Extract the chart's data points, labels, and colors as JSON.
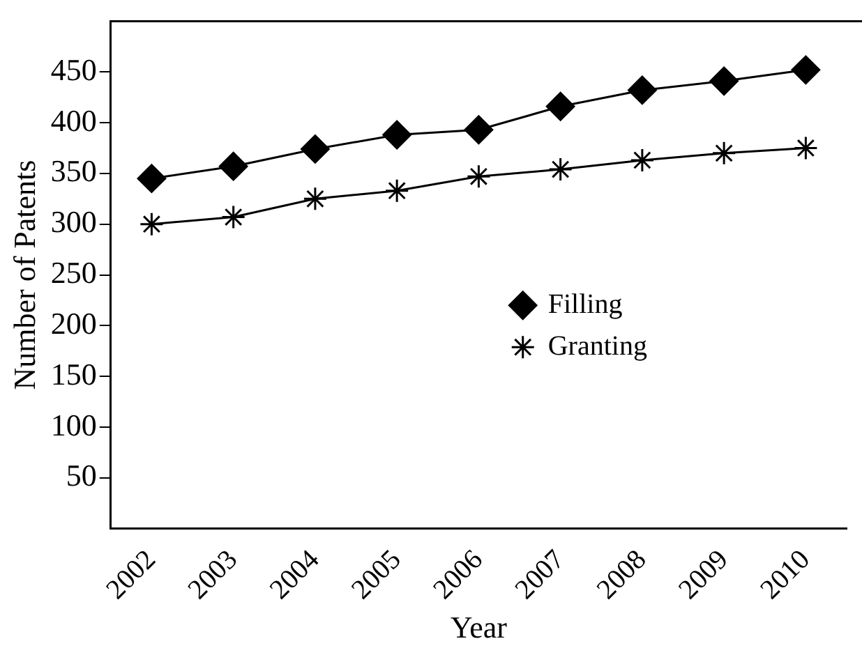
{
  "chart_data": {
    "type": "line",
    "xlabel": "Year",
    "ylabel": "Number of Patents",
    "categories": [
      "2002",
      "2003",
      "2004",
      "2005",
      "2006",
      "2007",
      "2008",
      "2009",
      "2010"
    ],
    "series": [
      {
        "name": "Filling",
        "color": "#000000",
        "marker": "diamond",
        "values": [
          345,
          357,
          374,
          388,
          393,
          416,
          432,
          441,
          452
        ]
      },
      {
        "name": "Granting",
        "color": "#000000",
        "marker": "cross",
        "values": [
          300,
          307,
          325,
          333,
          347,
          354,
          363,
          370,
          375
        ]
      }
    ],
    "ylim": [
      0,
      500
    ],
    "yticks": [
      50,
      100,
      150,
      200,
      250,
      300,
      350,
      400,
      450
    ],
    "grid": false,
    "legend": "center right",
    "line_style": "solid"
  }
}
